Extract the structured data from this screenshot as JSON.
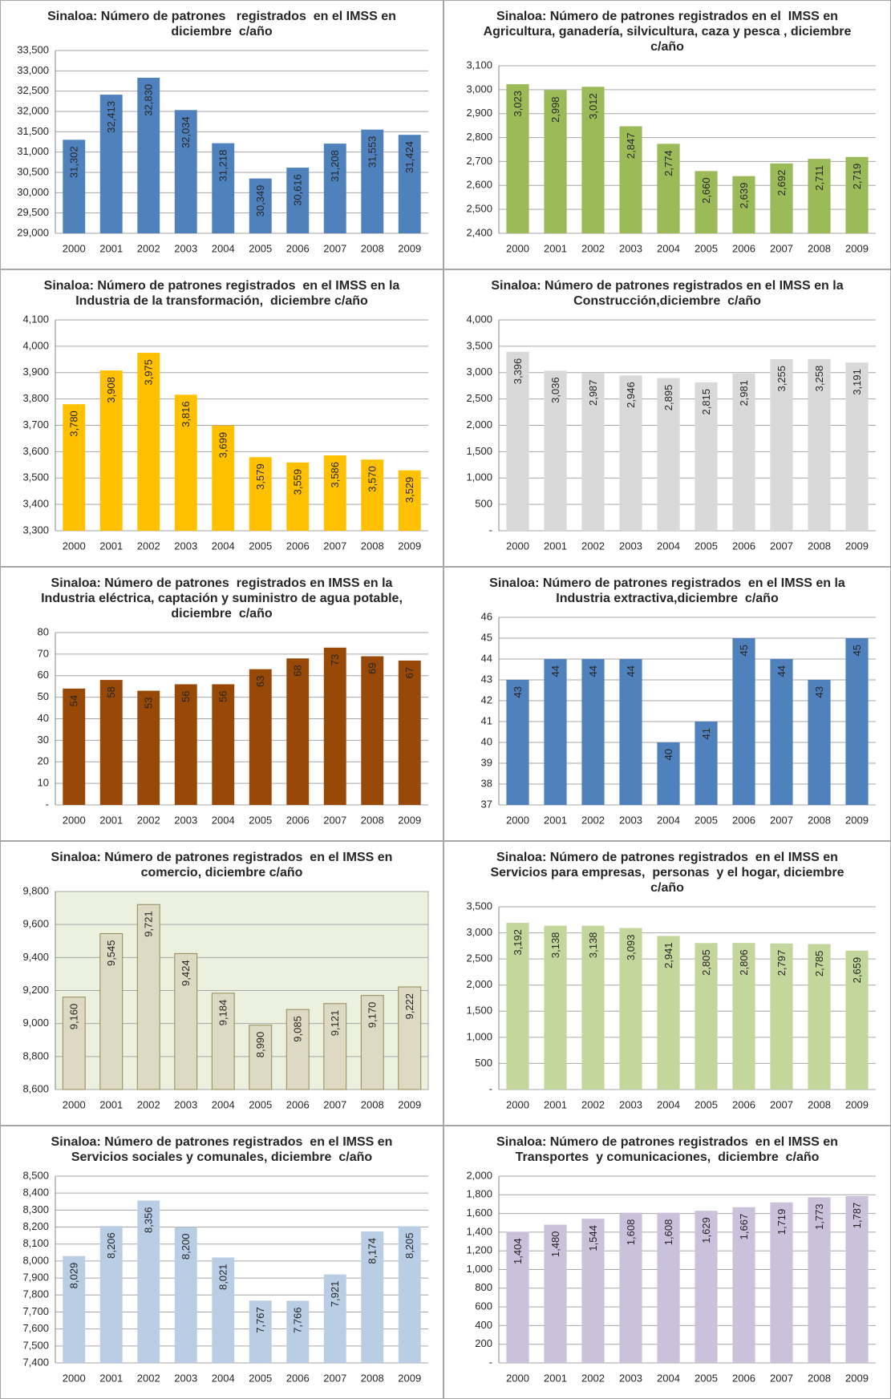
{
  "chart_data": [
    {
      "type": "bar",
      "title": "Sinaloa: Número de patrones   registrados  en el IMSS en diciembre  c/año",
      "color": "#4f81bd",
      "grid": true,
      "categories": [
        "2000",
        "2001",
        "2002",
        "2003",
        "2004",
        "2005",
        "2006",
        "2007",
        "2008",
        "2009"
      ],
      "values": [
        31302,
        32413,
        32830,
        32034,
        31218,
        30349,
        30616,
        31208,
        31553,
        31424
      ],
      "value_labels": [
        "31,302",
        "32,413",
        "32,830",
        "32,034",
        "31,218",
        "30,349",
        "30,616",
        "31,208",
        "31,553",
        "31,424"
      ],
      "ylim": [
        29000,
        33500
      ],
      "yticks": [
        {
          "value": 29000,
          "label": "29,000"
        },
        {
          "value": 29500,
          "label": "29,500"
        },
        {
          "value": 30000,
          "label": "30,000"
        },
        {
          "value": 30500,
          "label": "30,500"
        },
        {
          "value": 31000,
          "label": "31,000"
        },
        {
          "value": 31500,
          "label": "31,500"
        },
        {
          "value": 32000,
          "label": "32,000"
        },
        {
          "value": 32500,
          "label": "32,500"
        },
        {
          "value": 33000,
          "label": "33,000"
        },
        {
          "value": 33500,
          "label": "33,500"
        }
      ]
    },
    {
      "type": "bar",
      "title": "Sinaloa: Número de patrones registrados en el  IMSS en Agricultura, ganadería, silvicultura, caza y pesca , diciembre c/año",
      "color": "#9bbb59",
      "grid": true,
      "categories": [
        "2000",
        "2001",
        "2002",
        "2003",
        "2004",
        "2005",
        "2006",
        "2007",
        "2008",
        "2009"
      ],
      "values": [
        3023,
        2998,
        3012,
        2847,
        2774,
        2660,
        2639,
        2692,
        2711,
        2719
      ],
      "value_labels": [
        "3,023",
        "2,998",
        "3,012",
        "2,847",
        "2,774",
        "2,660",
        "2,639",
        "2,692",
        "2,711",
        "2,719"
      ],
      "ylim": [
        2400,
        3100
      ],
      "yticks": [
        {
          "value": 2400,
          "label": "2,400"
        },
        {
          "value": 2500,
          "label": "2,500"
        },
        {
          "value": 2600,
          "label": "2,600"
        },
        {
          "value": 2700,
          "label": "2,700"
        },
        {
          "value": 2800,
          "label": "2,800"
        },
        {
          "value": 2900,
          "label": "2,900"
        },
        {
          "value": 3000,
          "label": "3,000"
        },
        {
          "value": 3100,
          "label": "3,100"
        }
      ]
    },
    {
      "type": "bar",
      "title": "Sinaloa: Número de patrones registrados  en el IMSS en la Industria de la transformación,  diciembre c/año",
      "color": "#ffc000",
      "grid": true,
      "categories": [
        "2000",
        "2001",
        "2002",
        "2003",
        "2004",
        "2005",
        "2006",
        "2007",
        "2008",
        "2009"
      ],
      "values": [
        3780,
        3908,
        3975,
        3816,
        3699,
        3579,
        3559,
        3586,
        3570,
        3529
      ],
      "value_labels": [
        "3,780",
        "3,908",
        "3,975",
        "3,816",
        "3,699",
        "3,579",
        "3,559",
        "3,586",
        "3,570",
        "3,529"
      ],
      "ylim": [
        3300,
        4100
      ],
      "yticks": [
        {
          "value": 3300,
          "label": "3,300"
        },
        {
          "value": 3400,
          "label": "3,400"
        },
        {
          "value": 3500,
          "label": "3,500"
        },
        {
          "value": 3600,
          "label": "3,600"
        },
        {
          "value": 3700,
          "label": "3,700"
        },
        {
          "value": 3800,
          "label": "3,800"
        },
        {
          "value": 3900,
          "label": "3,900"
        },
        {
          "value": 4000,
          "label": "4,000"
        },
        {
          "value": 4100,
          "label": "4,100"
        }
      ]
    },
    {
      "type": "bar",
      "title": "Sinaloa: Número de patrones registrados en el IMSS en la  Construcción,diciembre  c/año",
      "color": "#d9d9d9",
      "grid": true,
      "categories": [
        "2000",
        "2001",
        "2002",
        "2003",
        "2004",
        "2005",
        "2006",
        "2007",
        "2008",
        "2009"
      ],
      "values": [
        3396,
        3036,
        2987,
        2946,
        2895,
        2815,
        2981,
        3255,
        3258,
        3191
      ],
      "value_labels": [
        "3,396",
        "3,036",
        "2,987",
        "2,946",
        "2,895",
        "2,815",
        "2,981",
        "3,255",
        "3,258",
        "3,191"
      ],
      "ylim": [
        0,
        4000
      ],
      "yticks": [
        {
          "value": 0,
          "label": "-"
        },
        500,
        {
          "value": 1000,
          "label": "1,000"
        },
        {
          "value": 1500,
          "label": "1,500"
        },
        {
          "value": 2000,
          "label": "2,000"
        },
        {
          "value": 2500,
          "label": "2,500"
        },
        {
          "value": 3000,
          "label": "3,000"
        },
        {
          "value": 3500,
          "label": "3,500"
        },
        {
          "value": 4000,
          "label": "4,000"
        }
      ]
    },
    {
      "type": "bar",
      "title": "Sinaloa: Número de patrones  registrados en IMSS en la Industria eléctrica, captación y suministro de agua potable, diciembre  c/año",
      "color": "#984807",
      "grid": true,
      "categories": [
        "2000",
        "2001",
        "2002",
        "2003",
        "2004",
        "2005",
        "2006",
        "2007",
        "2008",
        "2009"
      ],
      "values": [
        54,
        58,
        53,
        56,
        56,
        63,
        68,
        73,
        69,
        67
      ],
      "ylim": [
        0,
        80
      ],
      "yticks": [
        {
          "value": 0,
          "label": "-"
        },
        10,
        20,
        30,
        40,
        50,
        60,
        70,
        80
      ]
    },
    {
      "type": "bar",
      "title": "Sinaloa: Número de patrones registrados  en el IMSS en la Industria extractiva,diciembre  c/año",
      "color": "#4f81bd",
      "grid": true,
      "categories": [
        "2000",
        "2001",
        "2002",
        "2003",
        "2004",
        "2005",
        "2006",
        "2007",
        "2008",
        "2009"
      ],
      "values": [
        43,
        44,
        44,
        44,
        40,
        41,
        45,
        44,
        43,
        45
      ],
      "ylim": [
        37,
        46
      ],
      "yticks": [
        37,
        38,
        39,
        40,
        41,
        42,
        43,
        44,
        45,
        46
      ]
    },
    {
      "type": "bar",
      "title": "Sinaloa: Número de patrones registrados  en el IMSS en comercio, diciembre c/año",
      "color": "#ddd9c3",
      "grid": true,
      "plot_color": "#ebf1de",
      "categories": [
        "2000",
        "2001",
        "2002",
        "2003",
        "2004",
        "2005",
        "2006",
        "2007",
        "2008",
        "2009"
      ],
      "values": [
        9160,
        9545,
        9721,
        9424,
        9184,
        8990,
        9085,
        9121,
        9170,
        9222
      ],
      "value_labels": [
        "9,160",
        "9,545",
        "9,721",
        "9,424",
        "9,184",
        "8,990",
        "9,085",
        "9,121",
        "9,170",
        "9,222"
      ],
      "ylim": [
        8600,
        9800
      ],
      "yticks": [
        {
          "value": 8600,
          "label": "8,600"
        },
        {
          "value": 8800,
          "label": "8,800"
        },
        {
          "value": 9000,
          "label": "9,000"
        },
        {
          "value": 9200,
          "label": "9,200"
        },
        {
          "value": 9400,
          "label": "9,400"
        },
        {
          "value": 9600,
          "label": "9,600"
        },
        {
          "value": 9800,
          "label": "9,800"
        }
      ]
    },
    {
      "type": "bar",
      "title": "Sinaloa: Número de patrones registrados  en el IMSS en Servicios para empresas,  personas  y el hogar, diciembre c/año",
      "color": "#c3d69b",
      "grid": true,
      "categories": [
        "2000",
        "2001",
        "2002",
        "2003",
        "2004",
        "2005",
        "2006",
        "2007",
        "2008",
        "2009"
      ],
      "values": [
        3192,
        3138,
        3138,
        3093,
        2941,
        2805,
        2806,
        2797,
        2785,
        2659
      ],
      "value_labels": [
        "3,192",
        "3,138",
        "3,138",
        "3,093",
        "2,941",
        "2,805",
        "2,806",
        "2,797",
        "2,785",
        "2,659"
      ],
      "ylim": [
        0,
        3500
      ],
      "yticks": [
        {
          "value": 0,
          "label": "-"
        },
        500,
        {
          "value": 1000,
          "label": "1,000"
        },
        {
          "value": 1500,
          "label": "1,500"
        },
        {
          "value": 2000,
          "label": "2,000"
        },
        {
          "value": 2500,
          "label": "2,500"
        },
        {
          "value": 3000,
          "label": "3,000"
        },
        {
          "value": 3500,
          "label": "3,500"
        }
      ]
    },
    {
      "type": "bar",
      "title": "Sinaloa: Número de patrones registrados  en el IMSS en Servicios sociales y comunales, diciembre  c/año",
      "color": "#b9cde5",
      "grid": true,
      "categories": [
        "2000",
        "2001",
        "2002",
        "2003",
        "2004",
        "2005",
        "2006",
        "2007",
        "2008",
        "2009"
      ],
      "values": [
        8029,
        8206,
        8356,
        8200,
        8021,
        7767,
        7766,
        7921,
        8174,
        8205
      ],
      "value_labels": [
        "8,029",
        "8,206",
        "8,356",
        "8,200",
        "8,021",
        "7,767",
        "7,766",
        "7,921",
        "8,174",
        "8,205"
      ],
      "ylim": [
        7400,
        8500
      ],
      "yticks": [
        {
          "value": 7400,
          "label": "7,400"
        },
        {
          "value": 7500,
          "label": "7,500"
        },
        {
          "value": 7600,
          "label": "7,600"
        },
        {
          "value": 7700,
          "label": "7,700"
        },
        {
          "value": 7800,
          "label": "7,800"
        },
        {
          "value": 7900,
          "label": "7,900"
        },
        {
          "value": 8000,
          "label": "8,000"
        },
        {
          "value": 8100,
          "label": "8,100"
        },
        {
          "value": 8200,
          "label": "8,200"
        },
        {
          "value": 8300,
          "label": "8,300"
        },
        {
          "value": 8400,
          "label": "8,400"
        },
        {
          "value": 8500,
          "label": "8,500"
        }
      ]
    },
    {
      "type": "bar",
      "title": "Sinaloa: Número de patrones registrados  en el IMSS en Transportes  y comunicaciones,  diciembre  c/año",
      "color": "#ccc1da",
      "grid": true,
      "categories": [
        "2000",
        "2001",
        "2002",
        "2003",
        "2004",
        "2005",
        "2006",
        "2007",
        "2008",
        "2009"
      ],
      "values": [
        1404,
        1480,
        1544,
        1608,
        1608,
        1629,
        1667,
        1719,
        1773,
        1787
      ],
      "value_labels": [
        "1,404",
        "1,480",
        "1,544",
        "1,608",
        "1,608",
        "1,629",
        "1,667",
        "1,719",
        "1,773",
        "1,787"
      ],
      "ylim": [
        0,
        2000
      ],
      "yticks": [
        {
          "value": 0,
          "label": "-"
        },
        200,
        400,
        600,
        800,
        {
          "value": 1000,
          "label": "1,000"
        },
        {
          "value": 1200,
          "label": "1,200"
        },
        {
          "value": 1400,
          "label": "1,400"
        },
        {
          "value": 1600,
          "label": "1,600"
        },
        {
          "value": 1800,
          "label": "1,800"
        },
        {
          "value": 2000,
          "label": "2,000"
        }
      ]
    }
  ]
}
